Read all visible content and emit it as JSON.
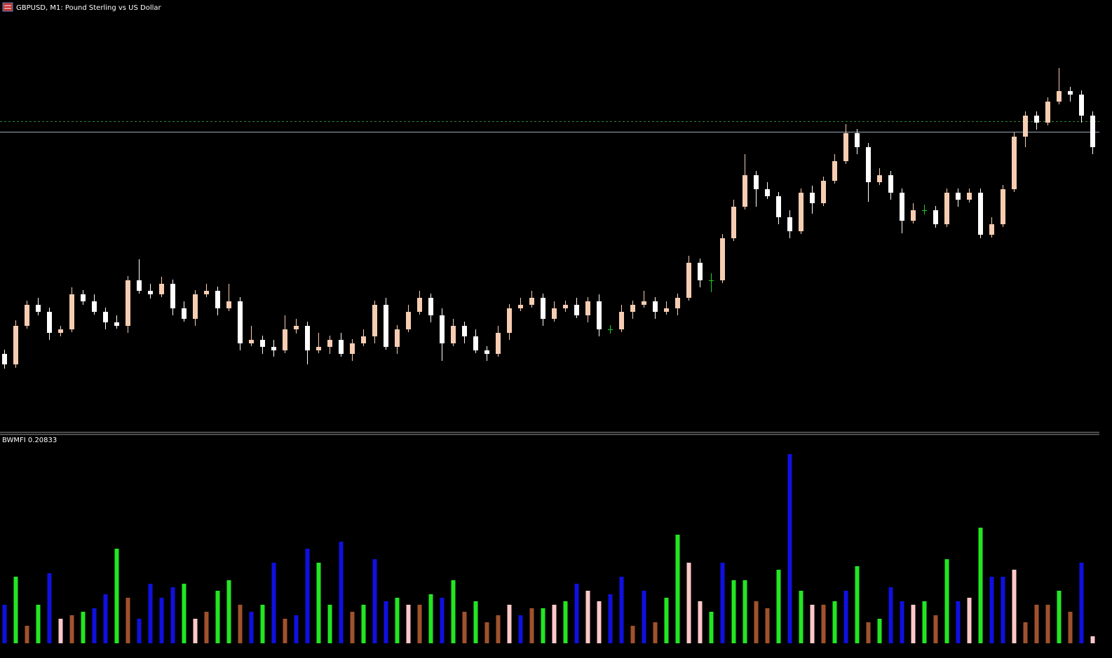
{
  "chart_data": [
    {
      "type": "candlestick",
      "title": "GBPUSD, M1:  Pound Sterling vs US Dollar",
      "ylim": [
        0,
        600
      ],
      "up_color": "#f7cdb2",
      "down_color": "#ffffff",
      "doji_color": "#22cc22",
      "levels": [
        {
          "value": 442,
          "color": "#2a8a2a",
          "dashed": true
        },
        {
          "value": 427,
          "color": "#9aa8b4",
          "dashed": false
        }
      ],
      "candles": [
        [
          110,
          116,
          89,
          95
        ],
        [
          95,
          158,
          90,
          150
        ],
        [
          150,
          186,
          146,
          180
        ],
        [
          180,
          190,
          165,
          170
        ],
        [
          170,
          176,
          130,
          140
        ],
        [
          140,
          150,
          135,
          145
        ],
        [
          145,
          205,
          141,
          195
        ],
        [
          195,
          201,
          180,
          185
        ],
        [
          185,
          195,
          166,
          170
        ],
        [
          170,
          176,
          145,
          155
        ],
        [
          155,
          165,
          146,
          150
        ],
        [
          150,
          221,
          140,
          215
        ],
        [
          215,
          245,
          196,
          200
        ],
        [
          200,
          210,
          189,
          195
        ],
        [
          195,
          220,
          191,
          210
        ],
        [
          210,
          216,
          165,
          175
        ],
        [
          175,
          185,
          156,
          160
        ],
        [
          160,
          201,
          150,
          195
        ],
        [
          195,
          210,
          191,
          200
        ],
        [
          200,
          206,
          165,
          175
        ],
        [
          175,
          210,
          171,
          185
        ],
        [
          185,
          191,
          115,
          125
        ],
        [
          125,
          150,
          121,
          130
        ],
        [
          130,
          136,
          110,
          120
        ],
        [
          120,
          130,
          106,
          115
        ],
        [
          115,
          165,
          111,
          145
        ],
        [
          145,
          160,
          139,
          150
        ],
        [
          150,
          156,
          95,
          115
        ],
        [
          115,
          140,
          111,
          120
        ],
        [
          120,
          136,
          110,
          130
        ],
        [
          130,
          140,
          106,
          110
        ],
        [
          110,
          131,
          100,
          125
        ],
        [
          125,
          145,
          121,
          135
        ],
        [
          135,
          186,
          125,
          180
        ],
        [
          180,
          190,
          116,
          120
        ],
        [
          120,
          151,
          110,
          145
        ],
        [
          145,
          180,
          141,
          170
        ],
        [
          170,
          200,
          166,
          190
        ],
        [
          190,
          196,
          155,
          165
        ],
        [
          165,
          175,
          100,
          125
        ],
        [
          125,
          160,
          121,
          150
        ],
        [
          150,
          156,
          125,
          135
        ],
        [
          135,
          145,
          111,
          115
        ],
        [
          115,
          121,
          100,
          110
        ],
        [
          110,
          150,
          106,
          140
        ],
        [
          140,
          181,
          130,
          175
        ],
        [
          175,
          190,
          171,
          180
        ],
        [
          180,
          200,
          176,
          190
        ],
        [
          190,
          196,
          150,
          160
        ],
        [
          160,
          185,
          156,
          175
        ],
        [
          175,
          186,
          170,
          180
        ],
        [
          180,
          190,
          161,
          165
        ],
        [
          165,
          191,
          155,
          185
        ],
        [
          185,
          195,
          135,
          145
        ],
        [
          145,
          151,
          139,
          145
        ],
        [
          145,
          180,
          141,
          170
        ],
        [
          170,
          186,
          160,
          180
        ],
        [
          180,
          200,
          176,
          185
        ],
        [
          185,
          191,
          160,
          170
        ],
        [
          170,
          185,
          166,
          175
        ],
        [
          175,
          196,
          165,
          190
        ],
        [
          190,
          250,
          186,
          240
        ],
        [
          240,
          246,
          205,
          215
        ],
        [
          215,
          225,
          198,
          215
        ],
        [
          215,
          281,
          211,
          275
        ],
        [
          275,
          330,
          271,
          320
        ],
        [
          320,
          395,
          316,
          365
        ],
        [
          365,
          371,
          320,
          345
        ],
        [
          345,
          355,
          331,
          335
        ],
        [
          335,
          341,
          295,
          305
        ],
        [
          305,
          315,
          275,
          285
        ],
        [
          285,
          346,
          281,
          340
        ],
        [
          340,
          350,
          310,
          325
        ],
        [
          325,
          363,
          321,
          357
        ],
        [
          357,
          395,
          353,
          385
        ],
        [
          385,
          438,
          381,
          425
        ],
        [
          425,
          431,
          395,
          405
        ],
        [
          405,
          411,
          327,
          355
        ],
        [
          355,
          375,
          351,
          365
        ],
        [
          365,
          371,
          330,
          340
        ],
        [
          340,
          346,
          282,
          300
        ],
        [
          300,
          325,
          296,
          315
        ],
        [
          315,
          323,
          309,
          315
        ],
        [
          315,
          321,
          290,
          295
        ],
        [
          295,
          346,
          291,
          340
        ],
        [
          340,
          346,
          320,
          330
        ],
        [
          330,
          346,
          326,
          340
        ],
        [
          340,
          346,
          275,
          280
        ],
        [
          280,
          305,
          276,
          295
        ],
        [
          295,
          351,
          291,
          345
        ],
        [
          345,
          426,
          341,
          420
        ],
        [
          420,
          456,
          405,
          450
        ],
        [
          450,
          456,
          430,
          440
        ],
        [
          440,
          476,
          436,
          470
        ],
        [
          470,
          518,
          466,
          485
        ],
        [
          485,
          491,
          470,
          480
        ],
        [
          480,
          486,
          440,
          450
        ],
        [
          450,
          456,
          395,
          405
        ]
      ]
    },
    {
      "type": "bar",
      "title": "BWMFI 0.20833",
      "ylim": [
        0,
        300
      ],
      "values": [
        55,
        95,
        25,
        55,
        100,
        35,
        40,
        45,
        50,
        70,
        135,
        65,
        35,
        85,
        65,
        80,
        85,
        35,
        45,
        75,
        90,
        55,
        45,
        55,
        115,
        35,
        40,
        135,
        115,
        55,
        145,
        45,
        55,
        120,
        60,
        65,
        55,
        55,
        70,
        65,
        90,
        45,
        60,
        30,
        40,
        55,
        40,
        50,
        50,
        55,
        60,
        85,
        75,
        60,
        70,
        95,
        25,
        75,
        30,
        65,
        155,
        115,
        60,
        45,
        115,
        90,
        90,
        60,
        50,
        105,
        270,
        75,
        55,
        55,
        60,
        75,
        110,
        30,
        35,
        80,
        60,
        55,
        60,
        40,
        120,
        60,
        65,
        165,
        95,
        95,
        105,
        30,
        55,
        55,
        75,
        45,
        115,
        10
      ],
      "colors": [
        "#1010e0",
        "#22e622",
        "#a0522d",
        "#22e622",
        "#1010e0",
        "#ffc8c8",
        "#a0522d",
        "#22e622",
        "#1010e0",
        "#1010e0",
        "#22e622",
        "#a0522d",
        "#1010e0",
        "#1010e0",
        "#1010e0",
        "#1010e0",
        "#22e622",
        "#ffc8c8",
        "#a0522d",
        "#22e622",
        "#22e622",
        "#a0522d",
        "#1010e0",
        "#22e622",
        "#1010e0",
        "#a0522d",
        "#1010e0",
        "#1010e0",
        "#22e622",
        "#22e622",
        "#1010e0",
        "#a0522d",
        "#22e622",
        "#1010e0",
        "#1010e0",
        "#22e622",
        "#ffc8c8",
        "#a0522d",
        "#22e622",
        "#1010e0",
        "#22e622",
        "#a0522d",
        "#22e622",
        "#a0522d",
        "#a0522d",
        "#ffc8c8",
        "#1010e0",
        "#a0522d",
        "#22e622",
        "#ffc8c8",
        "#22e622",
        "#1010e0",
        "#ffc8c8",
        "#ffc8c8",
        "#1010e0",
        "#1010e0",
        "#a0522d",
        "#1010e0",
        "#a0522d",
        "#22e622",
        "#22e622",
        "#ffc8c8",
        "#ffc8c8",
        "#22e622",
        "#1010e0",
        "#22e622",
        "#22e622",
        "#a0522d",
        "#a0522d",
        "#22e622",
        "#1010e0",
        "#22e622",
        "#ffc8c8",
        "#a0522d",
        "#22e622",
        "#1010e0",
        "#22e622",
        "#a0522d",
        "#22e622",
        "#1010e0",
        "#1010e0",
        "#ffc8c8",
        "#22e622",
        "#a0522d",
        "#22e622",
        "#1010e0",
        "#ffc8c8",
        "#22e622",
        "#1010e0",
        "#1010e0",
        "#ffc8c8",
        "#a0522d",
        "#a0522d",
        "#a0522d",
        "#22e622",
        "#a0522d",
        "#1010e0",
        "#ffc8c8"
      ]
    }
  ]
}
